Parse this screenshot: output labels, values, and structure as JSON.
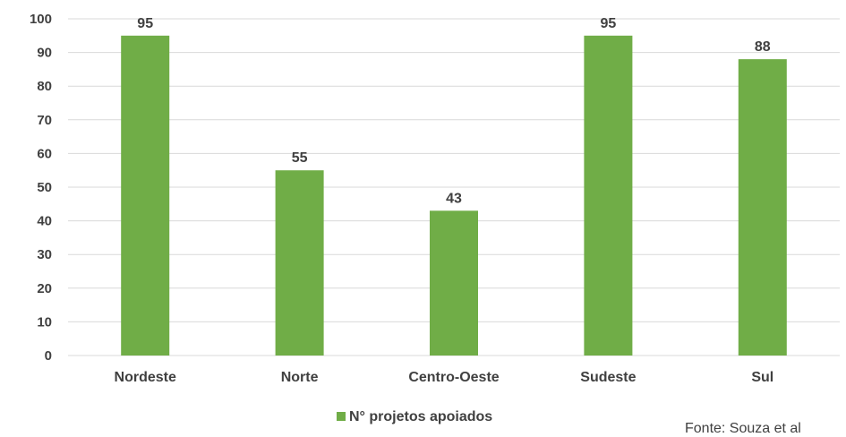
{
  "chart_data": {
    "type": "bar",
    "categories": [
      "Nordeste",
      "Norte",
      "Centro-Oeste",
      "Sudeste",
      "Sul"
    ],
    "series": [
      {
        "name": "N° projetos apoiados",
        "values": [
          95,
          55,
          43,
          95,
          88
        ]
      }
    ],
    "yticks": [
      "0",
      "10",
      "20",
      "30",
      "40",
      "50",
      "60",
      "70",
      "80",
      "90",
      "100"
    ],
    "ylim": [
      0,
      100
    ],
    "grid": true,
    "legend_position": "bottom",
    "data_labels": true,
    "colors": {
      "bar": "#70AD47",
      "grid": "#D9D9D9",
      "text": "#404040"
    }
  },
  "source_note": "Fonte: Souza et al"
}
